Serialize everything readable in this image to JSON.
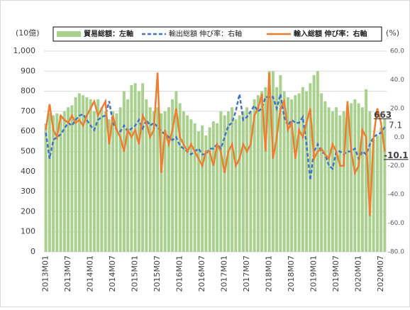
{
  "chart_data": {
    "type": "combo",
    "y_label": "(10億)",
    "y2_label": "(%)",
    "categories": [
      "2013M01",
      null,
      null,
      null,
      null,
      null,
      "2013M07",
      null,
      null,
      null,
      null,
      null,
      "2014M01",
      null,
      null,
      null,
      null,
      null,
      "2014M07",
      null,
      null,
      null,
      null,
      null,
      "2015M01",
      null,
      null,
      null,
      null,
      null,
      "2015M07",
      null,
      null,
      null,
      null,
      null,
      "2016M01",
      null,
      null,
      null,
      null,
      null,
      "2016M07",
      null,
      null,
      null,
      null,
      null,
      "2017M01",
      null,
      null,
      null,
      null,
      null,
      "2017M07",
      null,
      null,
      null,
      null,
      null,
      "2018M01",
      null,
      null,
      null,
      null,
      null,
      "2018M07",
      null,
      null,
      null,
      null,
      null,
      "2019M01",
      null,
      null,
      null,
      null,
      null,
      "2019M07",
      null,
      null,
      null,
      null,
      null,
      "2020M01",
      null,
      null,
      null,
      null,
      null,
      "2020M07",
      null
    ],
    "series": [
      {
        "name": "貿易総額：左軸",
        "type": "bar",
        "axis": "y",
        "color": "#a9d18e",
        "values": [
          640,
          690,
          680,
          690,
          680,
          700,
          720,
          730,
          770,
          790,
          780,
          770,
          760,
          700,
          760,
          720,
          700,
          660,
          700,
          690,
          720,
          800,
          760,
          830,
          840,
          800,
          840,
          760,
          720,
          700,
          720,
          690,
          700,
          720,
          760,
          800,
          740,
          700,
          680,
          660,
          640,
          600,
          630,
          580,
          620,
          650,
          640,
          700,
          680,
          700,
          720,
          660,
          680,
          700,
          720,
          700,
          760,
          780,
          800,
          820,
          900,
          900,
          820,
          880,
          800,
          770,
          760,
          780,
          790,
          820,
          800,
          840,
          880,
          900,
          790,
          750,
          720,
          700,
          720,
          680,
          700,
          720,
          740,
          760,
          740,
          720,
          810,
          700,
          560,
          580,
          620,
          663
        ]
      },
      {
        "name": "輸出総額 伸び率：右軸",
        "type": "line",
        "dashed": true,
        "axis": "y2",
        "color": "#4472c4",
        "values": [
          3,
          -15,
          -2,
          0,
          2,
          6,
          10,
          8,
          12,
          15,
          16,
          12,
          8,
          5,
          12,
          14,
          15,
          25,
          10,
          5,
          4,
          8,
          4,
          6,
          8,
          12,
          6,
          12,
          8,
          10,
          7,
          4,
          2,
          0,
          -2,
          0,
          -6,
          -8,
          -10,
          -12,
          -10,
          -8,
          -12,
          -12,
          -8,
          -8,
          -5,
          -8,
          0,
          8,
          10,
          18,
          30,
          12,
          14,
          18,
          22,
          18,
          20,
          28,
          28,
          28,
          20,
          30,
          14,
          8,
          12,
          10,
          10,
          14,
          -5,
          -30,
          -10,
          -5,
          -10,
          -12,
          -20,
          -22,
          -10,
          -10,
          -12,
          -10,
          -10,
          -8,
          -15,
          -10,
          -12,
          -5,
          0,
          2,
          3,
          7.1
        ]
      },
      {
        "name": "輸入総額 伸び率：右軸",
        "type": "line",
        "dashed": false,
        "axis": "y2",
        "color": "#ed7d31",
        "values": [
          5,
          23,
          5,
          0,
          15,
          12,
          10,
          15,
          10,
          12,
          8,
          15,
          20,
          25,
          15,
          20,
          25,
          -5,
          15,
          5,
          0,
          -10,
          5,
          0,
          5,
          -5,
          15,
          10,
          0,
          5,
          45,
          -25,
          5,
          -5,
          5,
          20,
          0,
          -5,
          -10,
          -5,
          -10,
          -15,
          -20,
          -10,
          -10,
          -20,
          -5,
          -10,
          -25,
          -10,
          -5,
          -20,
          -15,
          -5,
          -10,
          -5,
          15,
          20,
          30,
          -10,
          45,
          -15,
          0,
          20,
          25,
          5,
          10,
          -15,
          5,
          0,
          10,
          20,
          -15,
          -10,
          -8,
          -12,
          -15,
          -5,
          -10,
          -20,
          -20,
          25,
          -10,
          -25,
          -20,
          5,
          0,
          -55,
          0,
          20,
          10,
          -10.1
        ]
      }
    ],
    "ylim": [
      0,
      1000
    ],
    "yticks": [
      0,
      100,
      200,
      300,
      400,
      500,
      600,
      700,
      800,
      900,
      {
        "value": 1000,
        "label": "1,000"
      }
    ],
    "y2lim": [
      -80,
      60
    ],
    "y2ticks": [
      {
        "value": -80,
        "label": "-80.0"
      },
      {
        "value": -60,
        "label": "-60.0"
      },
      {
        "value": -40,
        "label": "-40.0"
      },
      {
        "value": -20,
        "label": "-20.0"
      },
      {
        "value": 0,
        "label": "0.0"
      },
      {
        "value": 20,
        "label": "20.0"
      },
      {
        "value": 40,
        "label": "40.0"
      },
      {
        "value": 60,
        "label": "60.0"
      }
    ],
    "grid": true
  }
}
